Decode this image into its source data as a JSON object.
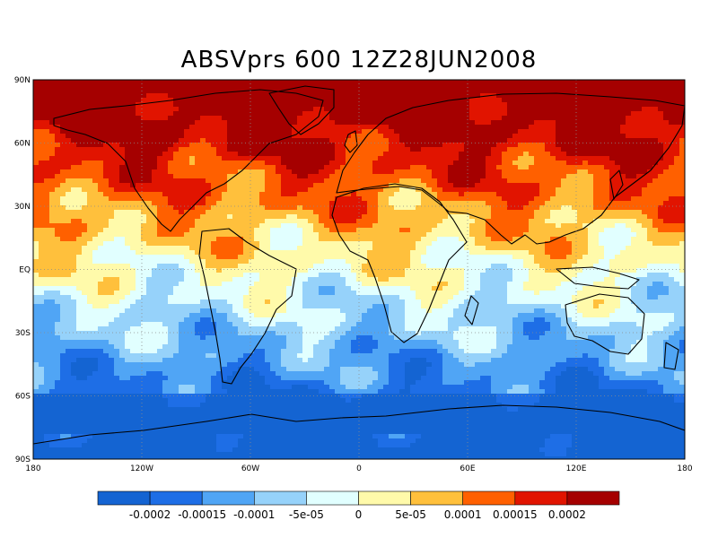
{
  "title": "ABSVprs 600 12Z28JUN2008",
  "axes": {
    "lat_ticks": [
      {
        "value": 90,
        "label": "90N"
      },
      {
        "value": 60,
        "label": "60N"
      },
      {
        "value": 30,
        "label": "30N"
      },
      {
        "value": 0,
        "label": "EQ"
      },
      {
        "value": -30,
        "label": "30S"
      },
      {
        "value": -60,
        "label": "60S"
      },
      {
        "value": -90,
        "label": "90S"
      }
    ],
    "lon_ticks": [
      {
        "value": -180,
        "label": "180"
      },
      {
        "value": -120,
        "label": "120W"
      },
      {
        "value": -60,
        "label": "60W"
      },
      {
        "value": 0,
        "label": "0"
      },
      {
        "value": 60,
        "label": "60E"
      },
      {
        "value": 120,
        "label": "120E"
      },
      {
        "value": 180,
        "label": "180"
      }
    ],
    "lon_range": [
      -180,
      180
    ],
    "lat_range": [
      -90,
      90
    ],
    "grid": "dotted"
  },
  "colorbar": {
    "colors": [
      "#1464d2",
      "#1e6ee6",
      "#50a5f5",
      "#96d2fa",
      "#e1ffff",
      "#fffaaa",
      "#ffc03c",
      "#ff6000",
      "#e11400",
      "#a50000"
    ],
    "labels": [
      "-0.0002",
      "-0.00015",
      "-0.0001",
      "-5e-05",
      "0",
      "5e-05",
      "0.0001",
      "0.00015",
      "0.0002"
    ]
  },
  "chart_data": {
    "type": "heatmap",
    "title": "ABSVprs 600 12Z28JUN2008",
    "levels": [
      -0.0002,
      -0.00015,
      -0.0001,
      -5e-05,
      0,
      5e-05,
      0.0001,
      0.00015,
      0.0002
    ],
    "xlim": [
      -180,
      180
    ],
    "ylim": [
      -90,
      90
    ]
  }
}
